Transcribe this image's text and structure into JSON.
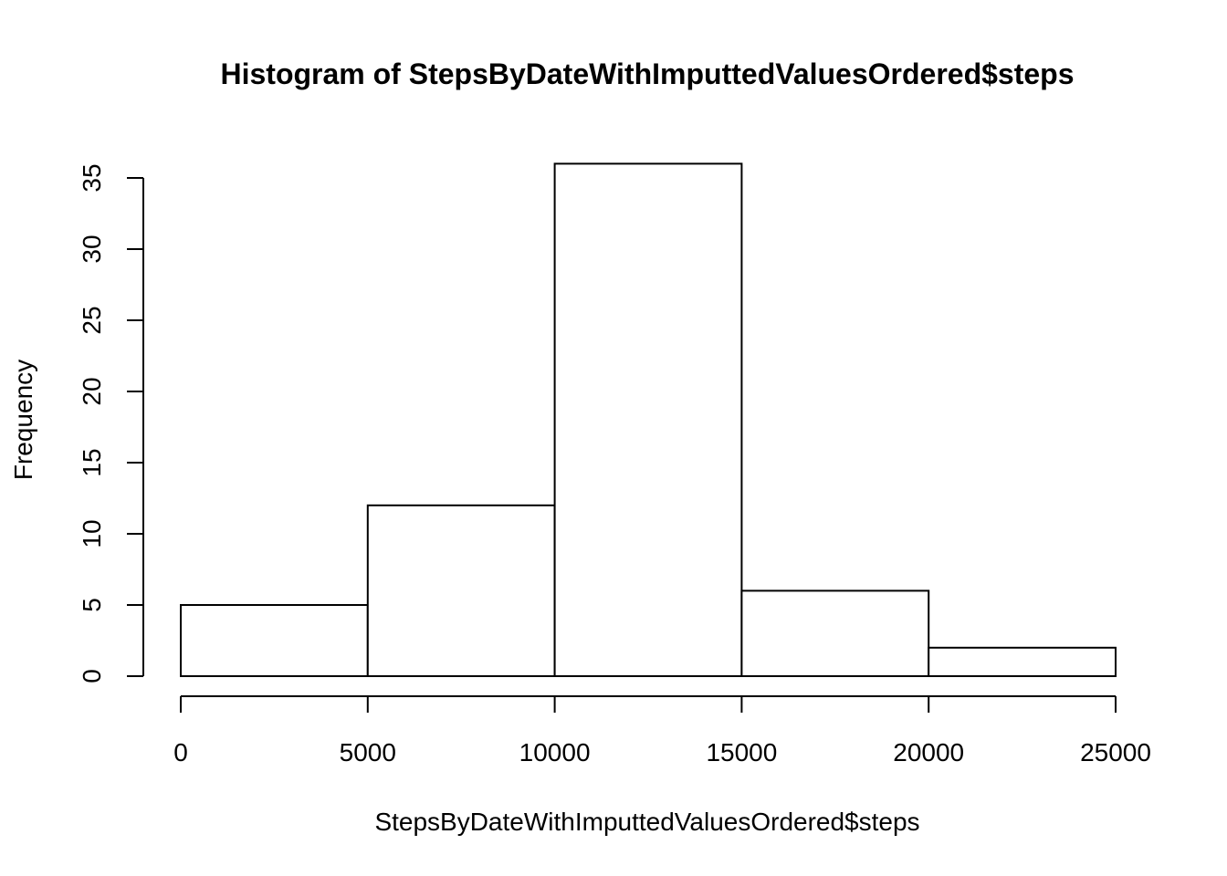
{
  "chart_data": {
    "type": "bar",
    "title": "Histogram of StepsByDateWithImputtedValuesOrdered$steps",
    "xlabel": "StepsByDateWithImputtedValuesOrdered$steps",
    "ylabel": "Frequency",
    "bins": [
      {
        "from": 0,
        "to": 5000,
        "count": 5
      },
      {
        "from": 5000,
        "to": 10000,
        "count": 12
      },
      {
        "from": 10000,
        "to": 15000,
        "count": 36
      },
      {
        "from": 15000,
        "to": 20000,
        "count": 6
      },
      {
        "from": 20000,
        "to": 25000,
        "count": 2
      }
    ],
    "xlim": [
      0,
      25000
    ],
    "ylim": [
      0,
      36
    ],
    "x_ticks": [
      "0",
      "5000",
      "10000",
      "15000",
      "20000",
      "25000"
    ],
    "y_ticks": [
      "0",
      "5",
      "10",
      "15",
      "20",
      "25",
      "30",
      "35"
    ],
    "grid": false,
    "bar_fill": "#ffffff",
    "bar_stroke": "#000000"
  }
}
